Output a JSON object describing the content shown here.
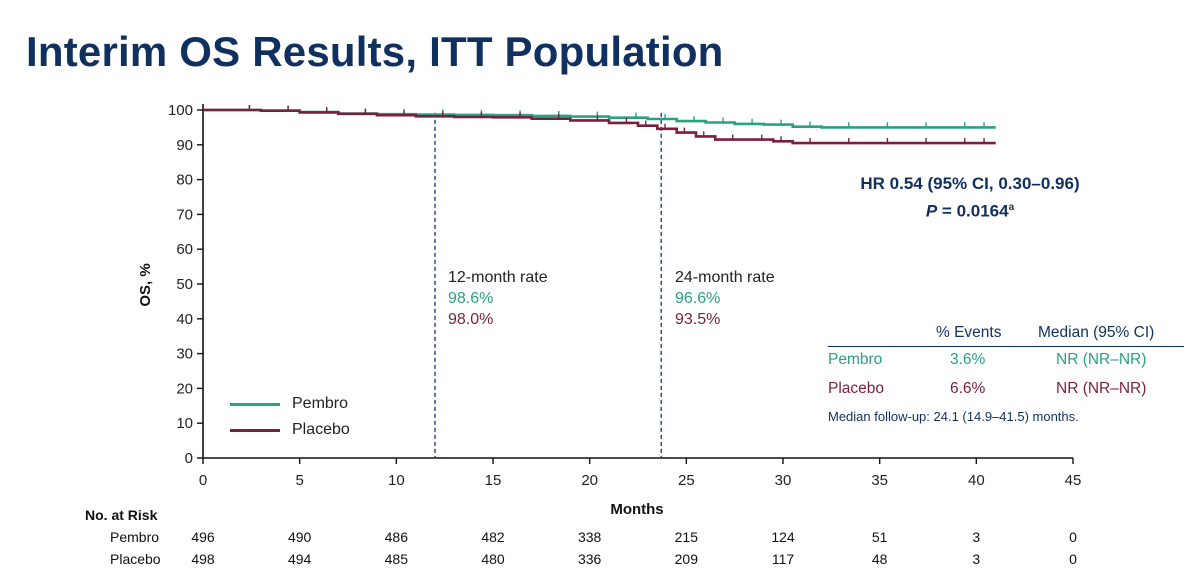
{
  "slide_title": "Interim OS Results, ITT Population",
  "colors": {
    "pembro": "#2aa084",
    "placebo": "#7a1f3d",
    "navy": "#10305f",
    "axis": "#111111",
    "ref_line": "#1f3f7a"
  },
  "chart_data": {
    "type": "line",
    "xlabel": "Months",
    "ylabel": "OS, %",
    "xlim": [
      0,
      45
    ],
    "ylim": [
      0,
      100
    ],
    "xticks": [
      0,
      5,
      10,
      15,
      20,
      25,
      30,
      35,
      40,
      45
    ],
    "yticks": [
      0,
      10,
      20,
      30,
      40,
      50,
      60,
      70,
      80,
      90,
      100
    ],
    "grid": false,
    "legend_position": "bottom-left",
    "series": [
      {
        "name": "Pembro",
        "color": "#2aa084",
        "x": [
          0,
          3,
          5,
          7,
          9,
          11,
          13,
          15,
          17,
          19,
          21,
          23,
          24.5,
          26,
          27.5,
          29,
          30.5,
          32,
          34,
          36,
          38,
          40,
          41
        ],
        "y": [
          100,
          99.8,
          99.4,
          99.0,
          98.8,
          98.7,
          98.6,
          98.5,
          98.3,
          98.1,
          97.8,
          97.4,
          96.8,
          96.4,
          96.0,
          95.8,
          95.2,
          95.0,
          95.0,
          95.0,
          95.0,
          95.0,
          95.0
        ]
      },
      {
        "name": "Placebo",
        "color": "#7a1f3d",
        "x": [
          0,
          3,
          5,
          7,
          9,
          11,
          13,
          15,
          17,
          19,
          21,
          22.5,
          23.5,
          24.5,
          25.5,
          26.5,
          28,
          29.5,
          30.5,
          32,
          34,
          36,
          38,
          40,
          41
        ],
        "y": [
          100,
          99.8,
          99.3,
          98.9,
          98.5,
          98.2,
          98.0,
          97.9,
          97.5,
          97.0,
          96.3,
          95.5,
          94.6,
          93.5,
          92.4,
          91.5,
          91.5,
          91.0,
          90.5,
          90.5,
          90.5,
          90.5,
          90.5,
          90.5,
          90.5
        ]
      }
    ],
    "reference_lines": [
      12,
      23.7
    ],
    "annotations": {
      "rate12": {
        "title": "12-month rate",
        "pembro": "98.6%",
        "placebo": "98.0%"
      },
      "rate24": {
        "title": "24-month rate",
        "pembro": "96.6%",
        "placebo": "93.5%"
      },
      "hr_line1": "HR 0.54 (95% CI, 0.30–0.96)",
      "p_label": "P",
      "p_value": " = 0.0164",
      "p_superscript": "a"
    }
  },
  "summary_table": {
    "col_events": "% Events",
    "col_median": "Median (95% CI)",
    "rows": [
      {
        "name": "Pembro",
        "events": "3.6%",
        "median": "NR (NR–NR)"
      },
      {
        "name": "Placebo",
        "events": "6.6%",
        "median": "NR (NR–NR)"
      }
    ],
    "followup": "Median follow-up: 24.1 (14.9–41.5) months."
  },
  "legend": [
    {
      "name": "Pembro",
      "color": "#2aa084"
    },
    {
      "name": "Placebo",
      "color": "#7a1f3d"
    }
  ],
  "risk_table": {
    "header": "No. at Risk",
    "rows": [
      {
        "name": "Pembro",
        "values": [
          "496",
          "490",
          "486",
          "482",
          "338",
          "215",
          "124",
          "51",
          "3",
          "0"
        ]
      },
      {
        "name": "Placebo",
        "values": [
          "498",
          "494",
          "485",
          "480",
          "336",
          "209",
          "117",
          "48",
          "3",
          "0"
        ]
      }
    ]
  }
}
